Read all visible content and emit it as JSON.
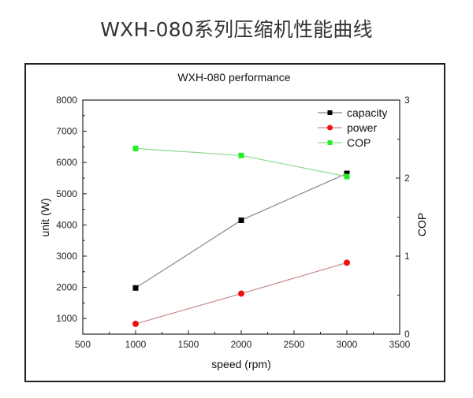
{
  "page": {
    "title": "WXH-080系列压缩机性能曲线"
  },
  "chart_data": {
    "type": "line",
    "title": "WXH-080 performance",
    "xlabel": "speed (rpm)",
    "ylabel": "unit (W)",
    "y2label": "COP",
    "xlim": [
      500,
      3500
    ],
    "ylim": [
      500,
      8000
    ],
    "y2lim": [
      0,
      3
    ],
    "x_ticks": [
      "500",
      "1000",
      "1500",
      "2000",
      "2500",
      "3000",
      "3500"
    ],
    "y_ticks": [
      "1000",
      "2000",
      "3000",
      "4000",
      "5000",
      "6000",
      "7000",
      "8000"
    ],
    "y2_ticks": [
      "0",
      "1",
      "2",
      "3"
    ],
    "grid": false,
    "legend_position": "upper right",
    "x": [
      1000,
      2000,
      3000
    ],
    "series": [
      {
        "name": "capacity",
        "axis": "left",
        "marker": "square",
        "line_color": "#888888",
        "marker_color": "#000000",
        "values": [
          1980,
          4150,
          5650
        ]
      },
      {
        "name": "power",
        "axis": "left",
        "marker": "circle",
        "line_color": "#c98a8a",
        "marker_color": "#ee1111",
        "values": [
          830,
          1800,
          2790
        ]
      },
      {
        "name": "COP",
        "axis": "right",
        "marker": "square",
        "line_color": "#8fd88f",
        "marker_color": "#22ee22",
        "values": [
          2.38,
          2.29,
          2.02
        ]
      }
    ],
    "legend": [
      {
        "label": "capacity"
      },
      {
        "label": "power"
      },
      {
        "label": "COP"
      }
    ]
  }
}
